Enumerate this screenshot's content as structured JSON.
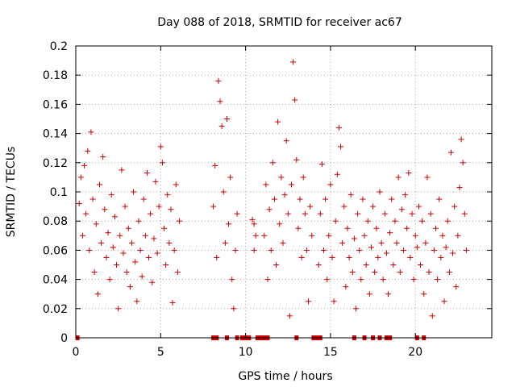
{
  "chart_data": {
    "type": "scatter",
    "title": "Day 088 of 2018, SRMTID for receiver ac67",
    "xlabel": "GPS time / hours",
    "ylabel": "SRMTID / TECUs",
    "xlim": [
      0,
      24.5
    ],
    "ylim": [
      0,
      0.2
    ],
    "xticks": [
      0,
      5,
      10,
      15,
      20
    ],
    "xtick_labels": [
      "0",
      "5",
      "10",
      "15",
      "20"
    ],
    "yticks": [
      0,
      0.02,
      0.04,
      0.06,
      0.08,
      0.1,
      0.12,
      0.14,
      0.16,
      0.18,
      0.2
    ],
    "ytick_labels": [
      "0",
      "0.02",
      "0.04",
      "0.06",
      "0.08",
      "0.1",
      "0.12",
      "0.14",
      "0.16",
      "0.18",
      "0.2"
    ],
    "grid": true,
    "marker": "plus",
    "color": "#cc0000",
    "series": [
      {
        "name": "SRMTID",
        "points": [
          [
            0.2,
            0.092
          ],
          [
            0.3,
            0.11
          ],
          [
            0.4,
            0.07
          ],
          [
            0.5,
            0.118
          ],
          [
            0.6,
            0.085
          ],
          [
            0.7,
            0.128
          ],
          [
            0.8,
            0.06
          ],
          [
            0.9,
            0.141
          ],
          [
            1.0,
            0.095
          ],
          [
            1.1,
            0.045
          ],
          [
            1.2,
            0.078
          ],
          [
            1.3,
            0.03
          ],
          [
            1.4,
            0.105
          ],
          [
            1.5,
            0.065
          ],
          [
            1.6,
            0.124
          ],
          [
            1.7,
            0.088
          ],
          [
            1.8,
            0.055
          ],
          [
            1.9,
            0.072
          ],
          [
            2.0,
            0.04
          ],
          [
            2.1,
            0.098
          ],
          [
            2.2,
            0.062
          ],
          [
            2.3,
            0.083
          ],
          [
            2.4,
            0.05
          ],
          [
            2.5,
            0.02
          ],
          [
            2.6,
            0.07
          ],
          [
            2.7,
            0.115
          ],
          [
            2.8,
            0.058
          ],
          [
            2.9,
            0.09
          ],
          [
            3.0,
            0.045
          ],
          [
            3.1,
            0.075
          ],
          [
            3.2,
            0.035
          ],
          [
            3.3,
            0.065
          ],
          [
            3.4,
            0.1
          ],
          [
            3.5,
            0.052
          ],
          [
            3.6,
            0.025
          ],
          [
            3.7,
            0.08
          ],
          [
            3.8,
            0.06
          ],
          [
            3.9,
            0.042
          ],
          [
            4.0,
            0.095
          ],
          [
            4.1,
            0.07
          ],
          [
            4.2,
            0.113
          ],
          [
            4.3,
            0.055
          ],
          [
            4.4,
            0.085
          ],
          [
            4.5,
            0.038
          ],
          [
            4.6,
            0.068
          ],
          [
            4.7,
            0.107
          ],
          [
            4.8,
            0.058
          ],
          [
            4.9,
            0.09
          ],
          [
            5.0,
            0.131
          ],
          [
            5.1,
            0.12
          ],
          [
            5.2,
            0.075
          ],
          [
            5.3,
            0.05
          ],
          [
            5.4,
            0.098
          ],
          [
            5.5,
            0.065
          ],
          [
            5.6,
            0.088
          ],
          [
            5.7,
            0.024
          ],
          [
            5.8,
            0.06
          ],
          [
            5.9,
            0.105
          ],
          [
            6.0,
            0.045
          ],
          [
            6.1,
            0.08
          ],
          [
            8.1,
            0.09
          ],
          [
            8.2,
            0.118
          ],
          [
            8.3,
            0.055
          ],
          [
            8.4,
            0.176
          ],
          [
            8.5,
            0.162
          ],
          [
            8.6,
            0.145
          ],
          [
            8.7,
            0.1
          ],
          [
            8.8,
            0.065
          ],
          [
            8.9,
            0.15
          ],
          [
            9.0,
            0.078
          ],
          [
            9.1,
            0.11
          ],
          [
            9.2,
            0.04
          ],
          [
            9.3,
            0.02
          ],
          [
            9.4,
            0.06
          ],
          [
            9.5,
            0.085
          ],
          [
            11.1,
            0.07
          ],
          [
            11.2,
            0.105
          ],
          [
            11.3,
            0.04
          ],
          [
            11.4,
            0.088
          ],
          [
            11.5,
            0.06
          ],
          [
            11.6,
            0.12
          ],
          [
            11.7,
            0.095
          ],
          [
            11.8,
            0.05
          ],
          [
            11.9,
            0.148
          ],
          [
            12.0,
            0.078
          ],
          [
            12.1,
            0.11
          ],
          [
            12.2,
            0.065
          ],
          [
            12.3,
            0.098
          ],
          [
            12.4,
            0.135
          ],
          [
            12.5,
            0.085
          ],
          [
            12.6,
            0.015
          ],
          [
            12.7,
            0.105
          ],
          [
            12.8,
            0.189
          ],
          [
            12.9,
            0.163
          ],
          [
            13.0,
            0.122
          ],
          [
            13.1,
            0.075
          ],
          [
            13.2,
            0.095
          ],
          [
            13.3,
            0.055
          ],
          [
            13.4,
            0.11
          ],
          [
            13.5,
            0.085
          ],
          [
            13.6,
            0.06
          ],
          [
            13.7,
            0.025
          ],
          [
            13.8,
            0.09
          ],
          [
            13.9,
            0.07
          ],
          [
            14.3,
            0.05
          ],
          [
            14.4,
            0.085
          ],
          [
            14.5,
            0.119
          ],
          [
            14.6,
            0.06
          ],
          [
            14.7,
            0.095
          ],
          [
            14.8,
            0.04
          ],
          [
            14.9,
            0.07
          ],
          [
            15.0,
            0.105
          ],
          [
            15.1,
            0.055
          ],
          [
            15.2,
            0.025
          ],
          [
            15.3,
            0.08
          ],
          [
            15.4,
            0.112
          ],
          [
            15.5,
            0.144
          ],
          [
            15.6,
            0.131
          ],
          [
            15.7,
            0.065
          ],
          [
            15.8,
            0.09
          ],
          [
            15.9,
            0.035
          ],
          [
            16.0,
            0.075
          ],
          [
            16.1,
            0.055
          ],
          [
            16.2,
            0.098
          ],
          [
            16.3,
            0.045
          ],
          [
            16.4,
            0.068
          ],
          [
            16.5,
            0.02
          ],
          [
            16.6,
            0.085
          ],
          [
            16.7,
            0.06
          ],
          [
            16.8,
            0.04
          ],
          [
            16.9,
            0.095
          ],
          [
            17.0,
            0.07
          ],
          [
            17.1,
            0.05
          ],
          [
            17.2,
            0.08
          ],
          [
            17.3,
            0.03
          ],
          [
            17.4,
            0.062
          ],
          [
            17.5,
            0.09
          ],
          [
            17.6,
            0.045
          ],
          [
            17.7,
            0.075
          ],
          [
            17.8,
            0.055
          ],
          [
            17.9,
            0.1
          ],
          [
            18.0,
            0.065
          ],
          [
            18.1,
            0.04
          ],
          [
            18.2,
            0.085
          ],
          [
            18.3,
            0.058
          ],
          [
            18.4,
            0.03
          ],
          [
            18.5,
            0.072
          ],
          [
            18.6,
            0.095
          ],
          [
            18.7,
            0.05
          ],
          [
            18.8,
            0.08
          ],
          [
            18.9,
            0.065
          ],
          [
            19.0,
            0.11
          ],
          [
            19.1,
            0.045
          ],
          [
            19.2,
            0.088
          ],
          [
            19.3,
            0.06
          ],
          [
            19.4,
            0.098
          ],
          [
            19.5,
            0.075
          ],
          [
            19.6,
            0.113
          ],
          [
            19.7,
            0.055
          ],
          [
            19.8,
            0.085
          ],
          [
            19.9,
            0.04
          ],
          [
            20.0,
            0.07
          ],
          [
            20.1,
            0.062
          ],
          [
            20.2,
            0.09
          ],
          [
            20.3,
            0.05
          ],
          [
            20.4,
            0.08
          ],
          [
            20.5,
            0.03
          ],
          [
            20.6,
            0.065
          ],
          [
            20.7,
            0.11
          ],
          [
            20.8,
            0.045
          ],
          [
            20.9,
            0.085
          ],
          [
            21.0,
            0.015
          ],
          [
            21.1,
            0.06
          ],
          [
            21.2,
            0.075
          ],
          [
            21.3,
            0.04
          ],
          [
            21.4,
            0.095
          ],
          [
            21.5,
            0.055
          ],
          [
            21.6,
            0.07
          ],
          [
            21.7,
            0.025
          ],
          [
            21.8,
            0.062
          ],
          [
            21.9,
            0.08
          ],
          [
            22.0,
            0.045
          ],
          [
            22.1,
            0.127
          ],
          [
            22.2,
            0.058
          ],
          [
            22.3,
            0.09
          ],
          [
            22.4,
            0.035
          ],
          [
            22.5,
            0.07
          ],
          [
            22.6,
            0.103
          ],
          [
            22.7,
            0.136
          ],
          [
            22.8,
            0.12
          ],
          [
            22.9,
            0.085
          ],
          [
            23.0,
            0.06
          ],
          [
            10.4,
            0.081
          ],
          [
            10.5,
            0.06
          ],
          [
            10.6,
            0.07
          ],
          [
            10.5,
            0.078
          ]
        ],
        "zero_points": [
          0.1,
          8.1,
          8.3,
          8.9,
          9.5,
          9.8,
          10.0,
          10.2,
          10.7,
          10.9,
          11.1,
          11.3,
          13.0,
          14.0,
          14.2,
          14.4,
          16.4,
          17.0,
          17.5,
          17.9,
          18.3,
          18.5,
          20.1,
          20.5
        ]
      }
    ]
  }
}
